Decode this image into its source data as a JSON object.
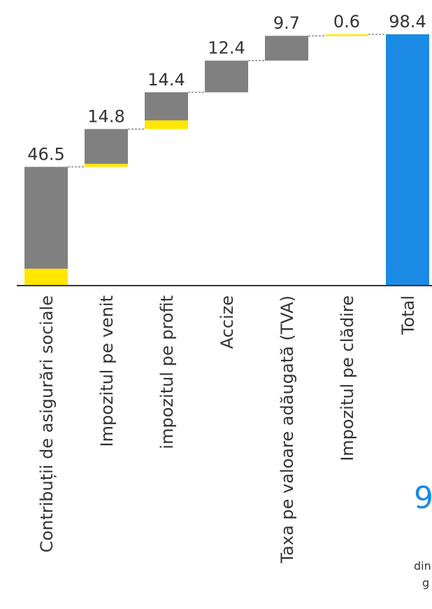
{
  "chart_data": {
    "type": "bar",
    "subtype": "waterfall",
    "categories": [
      "Contribuții de asigurări sociale",
      "Impozitul pe venit",
      "impozitul pe profit",
      "Accize",
      "Taxa pe valoare adăugată (TVA)",
      "Impozitul pe clădire",
      "Total"
    ],
    "totals": [
      46.5,
      14.8,
      14.4,
      12.4,
      9.7,
      0.6,
      98.4
    ],
    "value_labels": [
      "46.5",
      "14.8",
      "14.4",
      "12.4",
      "9.7",
      "0.6",
      "98.4"
    ],
    "yellow_portion": [
      6.6,
      1.2,
      3.4,
      0,
      0,
      0.6,
      0
    ],
    "is_total": [
      false,
      false,
      false,
      false,
      false,
      false,
      true
    ],
    "ylim": [
      0,
      98.4
    ],
    "colors": {
      "grey": "#808080",
      "yellow": "#ffe600",
      "total": "#1a8ae5",
      "axis": "#333333"
    }
  },
  "partial_overflow": {
    "big_text": "9",
    "line1": "din",
    "line2": "g"
  }
}
